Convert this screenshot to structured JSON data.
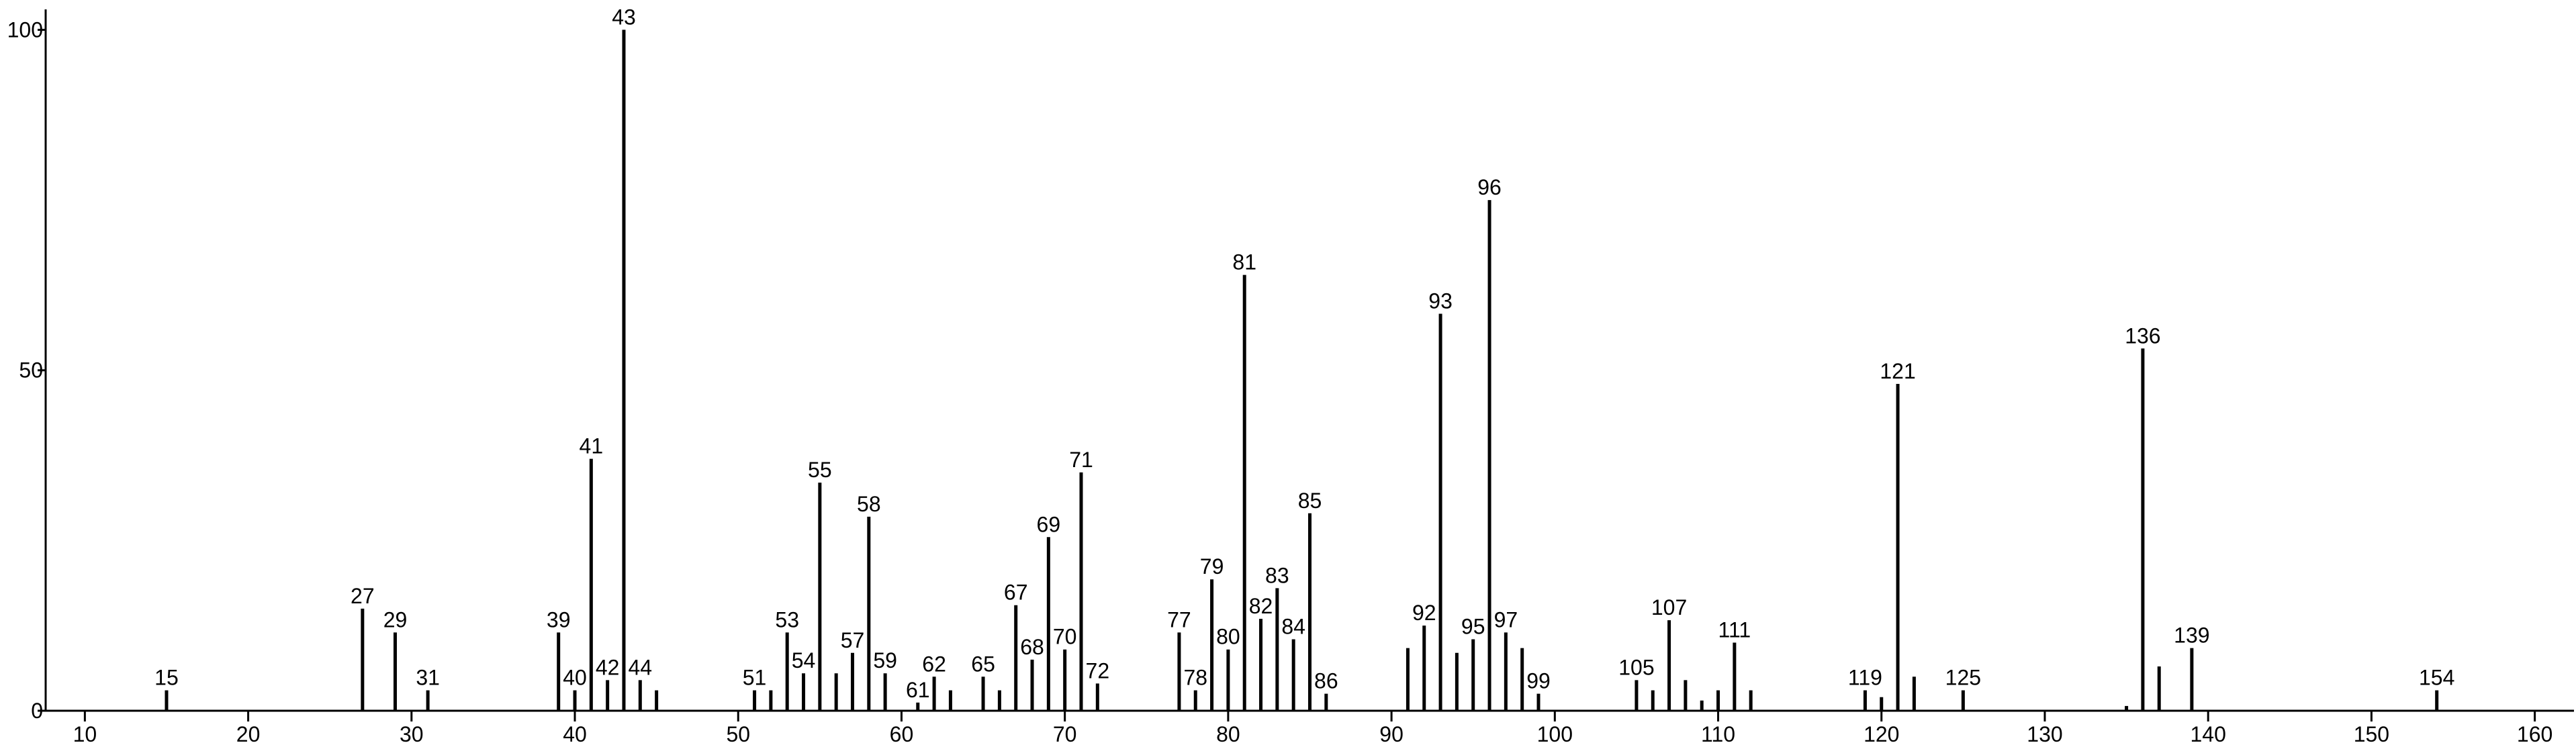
{
  "chart_data": {
    "type": "stem",
    "x": [
      15,
      27,
      29,
      31,
      39,
      40,
      41,
      42,
      43,
      44,
      51,
      53,
      54,
      55,
      57,
      58,
      59,
      61,
      62,
      65,
      67,
      68,
      69,
      70,
      71,
      72,
      77,
      78,
      79,
      80,
      81,
      82,
      83,
      84,
      85,
      86,
      92,
      93,
      95,
      96,
      97,
      99,
      105,
      107,
      111,
      119,
      121,
      125,
      136,
      139,
      154
    ],
    "values": [
      3,
      15,
      11.5,
      3,
      11.5,
      3,
      37,
      4.5,
      100,
      4.5,
      3,
      11.5,
      5.5,
      33.5,
      8.5,
      28.5,
      5.5,
      1.2,
      5,
      5,
      15.5,
      7.5,
      25.5,
      9,
      35,
      4,
      11.5,
      3,
      19.3,
      9,
      64,
      13.5,
      18,
      10.5,
      29,
      2.5,
      12.5,
      58.3,
      10.5,
      75,
      11.5,
      2.5,
      4.5,
      13.3,
      10,
      3,
      48,
      3,
      53.2,
      9.2,
      3
    ],
    "minor_peaks": {
      "x": [
        45,
        52,
        56,
        63,
        66,
        91,
        94,
        98,
        106,
        108,
        109,
        110,
        112,
        120,
        122,
        135,
        137
      ],
      "values": [
        3,
        3,
        5.5,
        3,
        3,
        9.2,
        8.5,
        9.2,
        3,
        4.5,
        1.5,
        3,
        3,
        2,
        5,
        0.7,
        6.5
      ]
    },
    "color": "#000000",
    "xlim": [
      7.6,
      162.4
    ],
    "xticks": [
      10,
      20,
      30,
      40,
      50,
      60,
      70,
      80,
      90,
      100,
      110,
      120,
      130,
      140,
      150,
      160
    ],
    "ylim": [
      0,
      103
    ],
    "yticks": [
      0,
      50,
      100
    ]
  }
}
